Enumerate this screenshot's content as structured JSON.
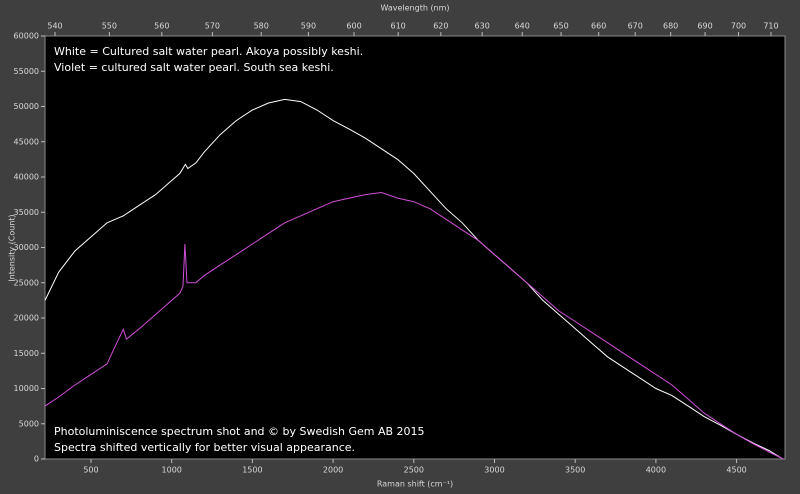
{
  "chart_data": {
    "type": "line",
    "xlabel": "Raman shift (cm⁻¹)",
    "x2label": "Wavelength (nm)",
    "ylabel": "Intensity (Count)",
    "annotations_top": [
      "White = Cultured salt water pearl. Akoya possibly keshi.",
      "Violet = cultured salt water pearl. South sea keshi."
    ],
    "annotations_bottom": [
      "Photoluminiscence spectrum shot and © by Swedish Gem AB 2015",
      "Spectra shifted vertically for better visual appearance."
    ],
    "xlim": [
      215,
      4800
    ],
    "xticks": [
      500,
      1000,
      1500,
      2000,
      2500,
      3000,
      3500,
      4000,
      4500
    ],
    "x2lim": [
      538.2,
      714.4
    ],
    "x2scale": "inverse",
    "x2ticks": [
      540,
      550,
      560,
      570,
      580,
      590,
      600,
      610,
      620,
      630,
      640,
      650,
      660,
      670,
      680,
      690,
      700,
      710
    ],
    "ylim": [
      0,
      60000
    ],
    "yticks": [
      0,
      5000,
      10000,
      15000,
      20000,
      25000,
      30000,
      35000,
      40000,
      45000,
      50000,
      55000,
      60000
    ],
    "series": [
      {
        "name": "White",
        "color": "#ffffff",
        "x": [
          215,
          300,
          400,
          500,
          600,
          700,
          800,
          900,
          1000,
          1050,
          1085,
          1100,
          1150,
          1200,
          1300,
          1400,
          1500,
          1600,
          1700,
          1800,
          1900,
          2000,
          2100,
          2200,
          2300,
          2400,
          2500,
          2600,
          2700,
          2800,
          2900,
          3000,
          3100,
          3200,
          3300,
          3400,
          3500,
          3600,
          3700,
          3800,
          3900,
          4000,
          4100,
          4200,
          4300,
          4400,
          4500,
          4600,
          4700,
          4780
        ],
        "values": [
          22500,
          26500,
          29500,
          31500,
          33500,
          34500,
          36000,
          37500,
          39500,
          40500,
          41800,
          41200,
          42000,
          43500,
          46000,
          48000,
          49500,
          50500,
          51000,
          50700,
          49500,
          48000,
          46800,
          45500,
          44000,
          42500,
          40500,
          38000,
          35500,
          33500,
          31000,
          29000,
          27000,
          25000,
          22500,
          20500,
          18500,
          16500,
          14500,
          13000,
          11500,
          10000,
          9000,
          7500,
          6000,
          4800,
          3500,
          2300,
          1200,
          100
        ]
      },
      {
        "name": "Violet",
        "color": "#d24fd8",
        "x": [
          215,
          300,
          400,
          500,
          600,
          650,
          700,
          720,
          800,
          900,
          1000,
          1050,
          1070,
          1082,
          1095,
          1150,
          1200,
          1300,
          1400,
          1500,
          1600,
          1700,
          1800,
          1900,
          2000,
          2100,
          2200,
          2300,
          2400,
          2500,
          2600,
          2700,
          2800,
          2900,
          3000,
          3100,
          3200,
          3300,
          3400,
          3500,
          3600,
          3700,
          3800,
          3900,
          4000,
          4100,
          4200,
          4300,
          4400,
          4500,
          4600,
          4700,
          4790
        ],
        "values": [
          7500,
          8800,
          10500,
          12000,
          13500,
          16000,
          18400,
          17000,
          18500,
          20500,
          22500,
          23500,
          24500,
          30500,
          25000,
          25000,
          26000,
          27500,
          29000,
          30500,
          32000,
          33500,
          34500,
          35500,
          36500,
          37000,
          37500,
          37800,
          37000,
          36500,
          35500,
          34000,
          32500,
          31000,
          29000,
          27000,
          25000,
          23000,
          21000,
          19500,
          18000,
          16500,
          15000,
          13500,
          12000,
          10500,
          8500,
          6500,
          5000,
          3500,
          2200,
          1000,
          0
        ]
      }
    ]
  }
}
